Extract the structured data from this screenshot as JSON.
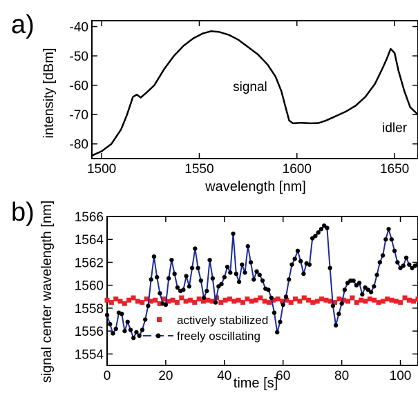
{
  "panels": [
    {
      "label": "a)"
    },
    {
      "label": "b)"
    }
  ],
  "chart_data": [
    {
      "type": "line",
      "xlabel": "wavelength [nm]",
      "ylabel": "intensity [dBm]",
      "xlim": [
        1495,
        1662
      ],
      "ylim": [
        -85,
        -38
      ],
      "xticks": [
        1500,
        1550,
        1600,
        1650
      ],
      "yticks": [
        -40,
        -50,
        -60,
        -70,
        -80
      ],
      "annotations": [
        {
          "text": "signal",
          "x": 1576,
          "y": -62
        },
        {
          "text": "idler",
          "x": 1650,
          "y": -76
        }
      ],
      "series": [
        {
          "color": "#000000",
          "points": [
            [
              1495,
              -84
            ],
            [
              1500,
              -82.5
            ],
            [
              1505,
              -80
            ],
            [
              1510,
              -75
            ],
            [
              1513,
              -70
            ],
            [
              1516,
              -64
            ],
            [
              1518,
              -63.2
            ],
            [
              1520,
              -64.2
            ],
            [
              1523,
              -62.5
            ],
            [
              1527,
              -60
            ],
            [
              1532,
              -54.5
            ],
            [
              1537,
              -50
            ],
            [
              1542,
              -46.5
            ],
            [
              1547,
              -44
            ],
            [
              1552,
              -42.3
            ],
            [
              1556,
              -41.6
            ],
            [
              1560,
              -41.8
            ],
            [
              1565,
              -42.8
            ],
            [
              1570,
              -44.5
            ],
            [
              1575,
              -47
            ],
            [
              1580,
              -49.5
            ],
            [
              1585,
              -53
            ],
            [
              1589,
              -57
            ],
            [
              1592,
              -62
            ],
            [
              1594,
              -67
            ],
            [
              1596,
              -72
            ],
            [
              1598,
              -73
            ],
            [
              1602,
              -72.8
            ],
            [
              1607,
              -73
            ],
            [
              1611,
              -72.9
            ],
            [
              1615,
              -72
            ],
            [
              1620,
              -70.5
            ],
            [
              1625,
              -69
            ],
            [
              1630,
              -67
            ],
            [
              1635,
              -64
            ],
            [
              1640,
              -59.5
            ],
            [
              1644,
              -54
            ],
            [
              1646,
              -51
            ],
            [
              1648,
              -47.6
            ],
            [
              1650,
              -49
            ],
            [
              1652,
              -55
            ],
            [
              1655,
              -62
            ],
            [
              1658,
              -67.5
            ],
            [
              1662,
              -70
            ]
          ]
        }
      ]
    },
    {
      "type": "scatter",
      "xlabel": "time [s]",
      "ylabel": "signal center wavelength [nm]",
      "xlim": [
        0,
        106
      ],
      "ylim": [
        1553,
        1566
      ],
      "xticks": [
        0,
        20,
        40,
        60,
        80,
        100
      ],
      "yticks": [
        1554,
        1556,
        1558,
        1560,
        1562,
        1564,
        1566
      ],
      "series": [
        {
          "name": "actively stabilized",
          "color": "#e8222a",
          "marker": "square",
          "line": false,
          "values": [
            1558.7,
            1558.5,
            1558.8,
            1558.6,
            1558.4,
            1558.7,
            1558.9,
            1558.6,
            1558.5,
            1558.8,
            1558.6,
            1558.7,
            1558.4,
            1558.8,
            1558.6,
            1558.7,
            1558.5,
            1558.9,
            1558.6,
            1558.7,
            1558.5,
            1558.8,
            1558.6,
            1558.7,
            1558.6,
            1558.9,
            1558.5,
            1558.7,
            1558.8,
            1558.6,
            1558.7,
            1558.5,
            1558.8,
            1558.6,
            1558.7,
            1558.9,
            1558.6,
            1558.5,
            1558.7,
            1558.8,
            1558.6,
            1558.7,
            1558.5,
            1558.8,
            1558.6,
            1558.9,
            1558.7,
            1558.5,
            1558.6,
            1558.8,
            1558.7,
            1558.6,
            1558.5,
            1558.8,
            1558.7,
            1558.6,
            1558.9,
            1558.5,
            1558.7,
            1558.6,
            1558.8,
            1558.7,
            1558.5,
            1558.6,
            1558.8,
            1558.7,
            1558.6,
            1558.5,
            1558.9,
            1558.7,
            1558.6,
            1558.8
          ]
        },
        {
          "name": "freely oscillating",
          "color": "#1d2b9c",
          "marker_color": "#000000",
          "marker": "circle",
          "line": true,
          "x": [
            0,
            1,
            2,
            3,
            4,
            5,
            6,
            7,
            8,
            9,
            10,
            11,
            12,
            13,
            14,
            15,
            16,
            17,
            18,
            19,
            20,
            21,
            22,
            23,
            24,
            25,
            26,
            27,
            28,
            29,
            30,
            31,
            32,
            33,
            34,
            35,
            36,
            37,
            38,
            39,
            40,
            41,
            42,
            43,
            44,
            45,
            46,
            47,
            48,
            49,
            50,
            51,
            52,
            53,
            54,
            55,
            56,
            57,
            58,
            59,
            60,
            61,
            62,
            63,
            64,
            65,
            66,
            67,
            68,
            69,
            70,
            71,
            72,
            73,
            74,
            75,
            76,
            77,
            78,
            79,
            80,
            81,
            82,
            83,
            84,
            85,
            86,
            87,
            88,
            89,
            90,
            91,
            92,
            93,
            94,
            95,
            96,
            97,
            98,
            99,
            100,
            101,
            102,
            103,
            104,
            105,
            106
          ],
          "y": [
            1557.4,
            1556.6,
            1555.8,
            1556.2,
            1557.6,
            1557.5,
            1556.0,
            1556.8,
            1556.1,
            1555.4,
            1555.9,
            1555.6,
            1556.1,
            1557.0,
            1558.2,
            1560.5,
            1562.5,
            1560.7,
            1559.3,
            1558.4,
            1558.3,
            1560.6,
            1562.2,
            1561.0,
            1559.8,
            1559.5,
            1559.6,
            1560.8,
            1559.9,
            1561.5,
            1563.2,
            1561.5,
            1560.4,
            1558.9,
            1559.5,
            1562.2,
            1560.6,
            1558.5,
            1559.9,
            1560.1,
            1560.7,
            1561.6,
            1561.1,
            1564.5,
            1561.0,
            1560.3,
            1561.8,
            1561.1,
            1563.4,
            1562.0,
            1560.5,
            1561.2,
            1560.9,
            1560.4,
            1559.7,
            1559.6,
            1558.9,
            1557.6,
            1555.9,
            1556.8,
            1558.3,
            1559.0,
            1560.5,
            1561.8,
            1562.3,
            1563.0,
            1562.1,
            1561.0,
            1561.9,
            1561.8,
            1564.1,
            1564.3,
            1564.6,
            1564.9,
            1565.2,
            1565.0,
            1561.5,
            1558.2,
            1556.5,
            1557.5,
            1558.4,
            1559.6,
            1560.2,
            1560.4,
            1560.4,
            1560.0,
            1560.2,
            1559.2,
            1559.8,
            1559.6,
            1559.4,
            1559.9,
            1560.9,
            1562.0,
            1562.6,
            1564.0,
            1564.9,
            1564.0,
            1563.0,
            1562.0,
            1561.5,
            1561.7,
            1562.4,
            1561.8,
            1561.5,
            1561.7,
            1561.8
          ]
        }
      ],
      "legend_position": "bottom-right"
    }
  ]
}
